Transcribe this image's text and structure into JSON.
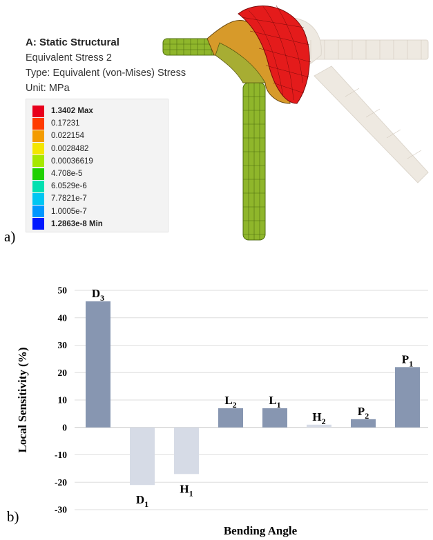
{
  "panel_a": {
    "letter": "a)",
    "legend": {
      "title": "A: Static Structural",
      "lines": [
        "Equivalent Stress 2",
        "Type: Equivalent (von-Mises) Stress",
        "Unit: MPa"
      ],
      "entries": [
        {
          "label": "1.3402 Max",
          "color": "#e8001c",
          "bold": true
        },
        {
          "label": "0.17231",
          "color": "#ff3b00",
          "bold": false
        },
        {
          "label": "0.022154",
          "color": "#f39b00",
          "bold": false
        },
        {
          "label": "0.0028482",
          "color": "#f3e600",
          "bold": false
        },
        {
          "label": "0.00036619",
          "color": "#a6e800",
          "bold": false
        },
        {
          "label": "4.708e-5",
          "color": "#1fd000",
          "bold": false
        },
        {
          "label": "6.0529e-6",
          "color": "#00e0b0",
          "bold": false
        },
        {
          "label": "7.7821e-7",
          "color": "#00c6f2",
          "bold": false
        },
        {
          "label": "1.0005e-7",
          "color": "#0096ff",
          "bold": false
        },
        {
          "label": "1.2863e-8 Min",
          "color": "#0018ff",
          "bold": true
        }
      ]
    },
    "mesh_colors": {
      "dome": "#e41b1b",
      "band": "#d79a2a",
      "tube": "#8fb62b",
      "ghost": "#e8e2d8"
    }
  },
  "panel_b": {
    "letter": "b)"
  },
  "chart_data": {
    "type": "bar",
    "categories": [
      "D3",
      "D1",
      "H1",
      "L2",
      "L1",
      "H2",
      "P2",
      "P1"
    ],
    "category_labels": [
      {
        "main": "D",
        "sub": "3"
      },
      {
        "main": "D",
        "sub": "1"
      },
      {
        "main": "H",
        "sub": "1"
      },
      {
        "main": "L",
        "sub": "2"
      },
      {
        "main": "L",
        "sub": "1"
      },
      {
        "main": "H",
        "sub": "2"
      },
      {
        "main": "P",
        "sub": "2"
      },
      {
        "main": "P",
        "sub": "1"
      }
    ],
    "values": [
      46,
      -21,
      -17,
      7,
      7,
      1,
      3,
      22
    ],
    "xlabel": "Bending Angle",
    "ylabel": "Local Sensitivity (%)",
    "ylim": [
      -30,
      50
    ],
    "yticks": [
      -30,
      -20,
      -10,
      0,
      10,
      20,
      30,
      40,
      50
    ],
    "grid": true,
    "colors": {
      "positive": "#8796b1",
      "negative": "#d6dbe6",
      "small": "#d6dbe6"
    }
  }
}
